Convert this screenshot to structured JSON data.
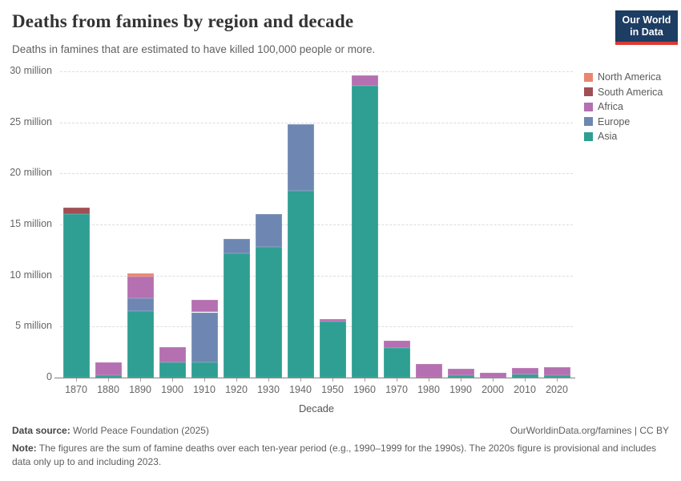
{
  "header": {
    "title": "Deaths from famines by region and decade",
    "subtitle": "Deaths in famines that are estimated to have killed 100,000 people or more.",
    "logo": {
      "line1": "Our World",
      "line2": "in Data",
      "bg_color": "#1d3d63",
      "accent_color": "#d93a34"
    }
  },
  "chart_data": {
    "type": "bar",
    "stacked": true,
    "title": "Deaths from famines by region and decade",
    "xlabel": "Decade",
    "ylabel": "",
    "values_unit": "millions of deaths",
    "ylim_millions": [
      0,
      30
    ],
    "grid": true,
    "legend_position": "right",
    "yticks": [
      {
        "value": 0,
        "label": "0"
      },
      {
        "value": 5,
        "label": "5 million"
      },
      {
        "value": 10,
        "label": "10 million"
      },
      {
        "value": 15,
        "label": "15 million"
      },
      {
        "value": 20,
        "label": "20 million"
      },
      {
        "value": 25,
        "label": "25 million"
      },
      {
        "value": 30,
        "label": "30 million"
      }
    ],
    "categories": [
      "1870",
      "1880",
      "1890",
      "1900",
      "1910",
      "1920",
      "1930",
      "1940",
      "1950",
      "1960",
      "1970",
      "1980",
      "1990",
      "2000",
      "2010",
      "2020"
    ],
    "series": [
      {
        "name": "Asia",
        "color": "#2f9e93",
        "values": [
          16.0,
          0.25,
          6.5,
          1.5,
          1.5,
          12.2,
          12.8,
          18.3,
          5.5,
          28.6,
          2.9,
          0,
          0.2,
          0,
          0.35,
          0.2
        ]
      },
      {
        "name": "Europe",
        "color": "#6e87b2",
        "values": [
          0,
          0,
          1.3,
          0,
          4.9,
          1.4,
          3.2,
          6.5,
          0,
          0,
          0,
          0,
          0,
          0,
          0,
          0
        ]
      },
      {
        "name": "Africa",
        "color": "#b470b0",
        "values": [
          0,
          1.25,
          2.1,
          1.5,
          1.2,
          0,
          0,
          0,
          0.2,
          1.0,
          0.7,
          1.3,
          0.7,
          0.5,
          0.6,
          0.8
        ]
      },
      {
        "name": "South America",
        "color": "#a14e55",
        "values": [
          0.65,
          0,
          0,
          0,
          0,
          0,
          0,
          0,
          0,
          0,
          0,
          0,
          0,
          0,
          0,
          0
        ]
      },
      {
        "name": "North America",
        "color": "#e8876f",
        "values": [
          0,
          0,
          0.3,
          0,
          0,
          0,
          0,
          0,
          0,
          0,
          0,
          0,
          0,
          0,
          0,
          0
        ]
      }
    ]
  },
  "footer": {
    "data_source_label": "Data source:",
    "data_source_value": " World Peace Foundation (2025)",
    "link": "OurWorldinData.org/famines | CC BY",
    "note_label": "Note:",
    "note_text": " The figures are the sum of famine deaths over each ten-year period (e.g., 1990–1999 for the 1990s). The 2020s figure is provisional and includes data only up to and including 2023."
  }
}
